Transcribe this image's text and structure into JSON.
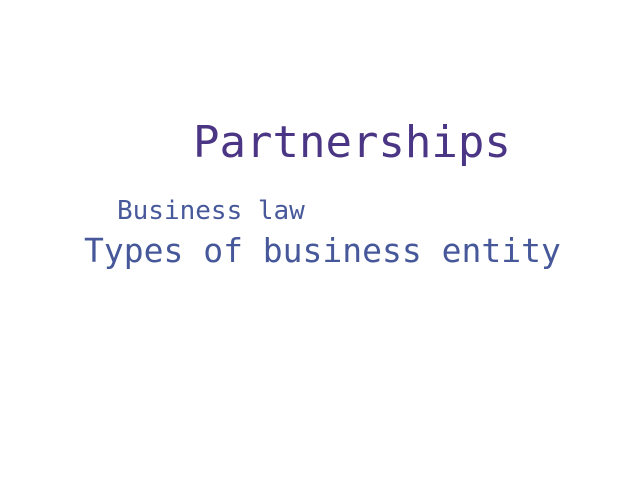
{
  "words": [
    {
      "text": "Partnerships",
      "color": "#4b3585"
    },
    {
      "text": "Business law",
      "color": "#47599a"
    },
    {
      "text": "Types of business entity",
      "color": "#46589a"
    }
  ]
}
